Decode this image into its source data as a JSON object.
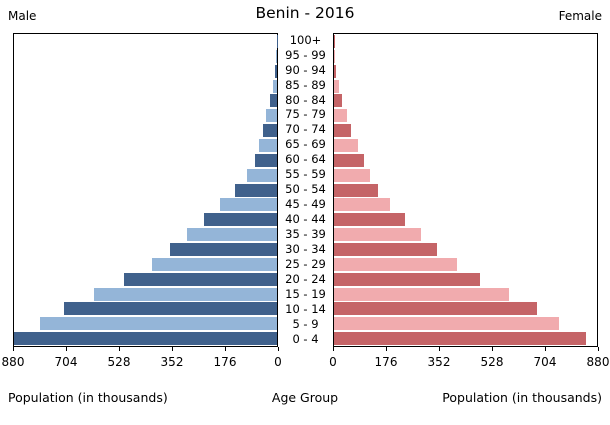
{
  "header": {
    "title": "Benin - 2016",
    "male_label": "Male",
    "female_label": "Female"
  },
  "axis": {
    "left_caption": "Population (in thousands)",
    "center_caption": "Age Group",
    "right_caption": "Population (in thousands)"
  },
  "chart_data": {
    "type": "bar",
    "subtype": "population-pyramid",
    "title": "Benin - 2016",
    "orientation": "horizontal",
    "age_groups": [
      "100+",
      "95 - 99",
      "90 - 94",
      "85 - 89",
      "80 - 84",
      "75 - 79",
      "70 - 74",
      "65 - 69",
      "60 - 64",
      "55 - 59",
      "50 - 54",
      "45 - 49",
      "40 - 44",
      "35 - 39",
      "30 - 34",
      "25 - 29",
      "20 - 24",
      "15 - 19",
      "10 - 14",
      "5 - 9",
      "0 - 4"
    ],
    "series": [
      {
        "name": "Male",
        "side": "left",
        "values": [
          1,
          4,
          8,
          13,
          24,
          37,
          48,
          60,
          75,
          102,
          140,
          190,
          243,
          300,
          358,
          418,
          513,
          613,
          712,
          792,
          880
        ]
      },
      {
        "name": "Female",
        "side": "right",
        "values": [
          2,
          4,
          7,
          16,
          27,
          42,
          57,
          79,
          99,
          121,
          148,
          187,
          239,
          291,
          345,
          411,
          488,
          587,
          680,
          753,
          842
        ]
      }
    ],
    "xlim": [
      0,
      880
    ],
    "male_axis_ticks": [
      "880",
      "704",
      "528",
      "352",
      "176",
      "0"
    ],
    "female_axis_ticks": [
      "0",
      "176",
      "352",
      "528",
      "704",
      "880"
    ],
    "xlabel": "Population (in thousands)",
    "ylabel": "Age Group",
    "grid": false,
    "colors": {
      "male_dark": "#40618C",
      "male_light": "#94B5D8",
      "female_dark": "#C56467",
      "female_light": "#F1ABAE"
    }
  }
}
